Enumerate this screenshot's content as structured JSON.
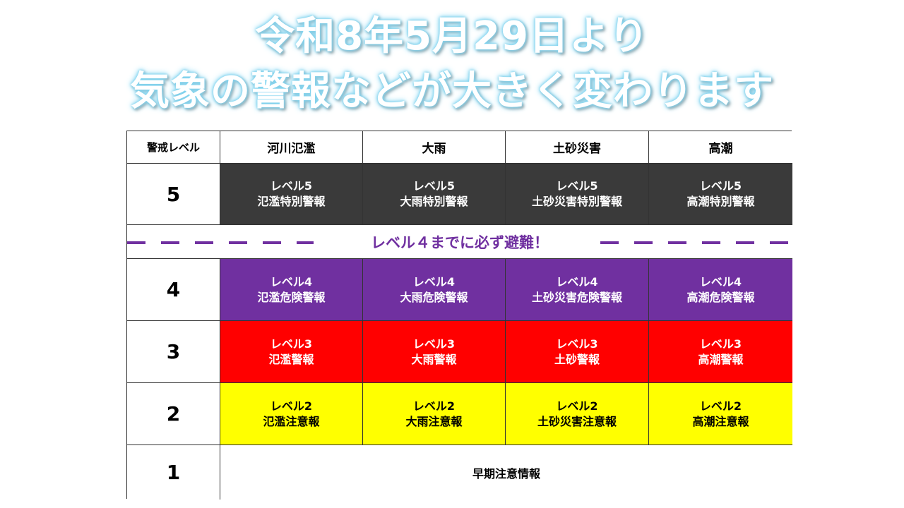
{
  "title": {
    "line1": "令和8年5月29日より",
    "line2": "気象の警報などが大きく変わります"
  },
  "table": {
    "headers": [
      "警戒レベル",
      "河川氾濫",
      "大雨",
      "土砂災害",
      "高潮"
    ],
    "banner": "レベル４までに必ず避難！",
    "level5": {
      "level": "5",
      "cells": [
        {
          "line1": "レベル5",
          "line2": "氾濫特別警報"
        },
        {
          "line1": "レベル5",
          "line2": "大雨特別警報"
        },
        {
          "line1": "レベル5",
          "line2": "土砂災害特別警報"
        },
        {
          "line1": "レベル5",
          "line2": "高潮特別警報"
        }
      ]
    },
    "level4": {
      "level": "4",
      "cells": [
        {
          "line1": "レベル4",
          "line2": "氾濫危険警報"
        },
        {
          "line1": "レベル4",
          "line2": "大雨危険警報"
        },
        {
          "line1": "レベル4",
          "line2": "土砂災害危険警報"
        },
        {
          "line1": "レベル4",
          "line2": "高潮危険警報"
        }
      ]
    },
    "level3": {
      "level": "3",
      "cells": [
        {
          "line1": "レベル3",
          "line2": "氾濫警報"
        },
        {
          "line1": "レベル3",
          "line2": "大雨警報"
        },
        {
          "line1": "レベル3",
          "line2": "土砂警報"
        },
        {
          "line1": "レベル3",
          "line2": "高潮警報"
        }
      ]
    },
    "level2": {
      "level": "2",
      "cells": [
        {
          "line1": "レベル2",
          "line2": "氾濫注意報"
        },
        {
          "line1": "レベル2",
          "line2": "大雨注意報"
        },
        {
          "line1": "レベル2",
          "line2": "土砂災害注意報"
        },
        {
          "line1": "レベル2",
          "line2": "高潮注意報"
        }
      ]
    },
    "level1": {
      "level": "1",
      "text": "早期注意情報"
    }
  },
  "colors": {
    "level5": "#3a3a3a",
    "level4": "#7030a0",
    "level3": "#ff0000",
    "level2": "#ffff00",
    "banner": "#7030a0",
    "title_glow": "#7fd4f0"
  }
}
